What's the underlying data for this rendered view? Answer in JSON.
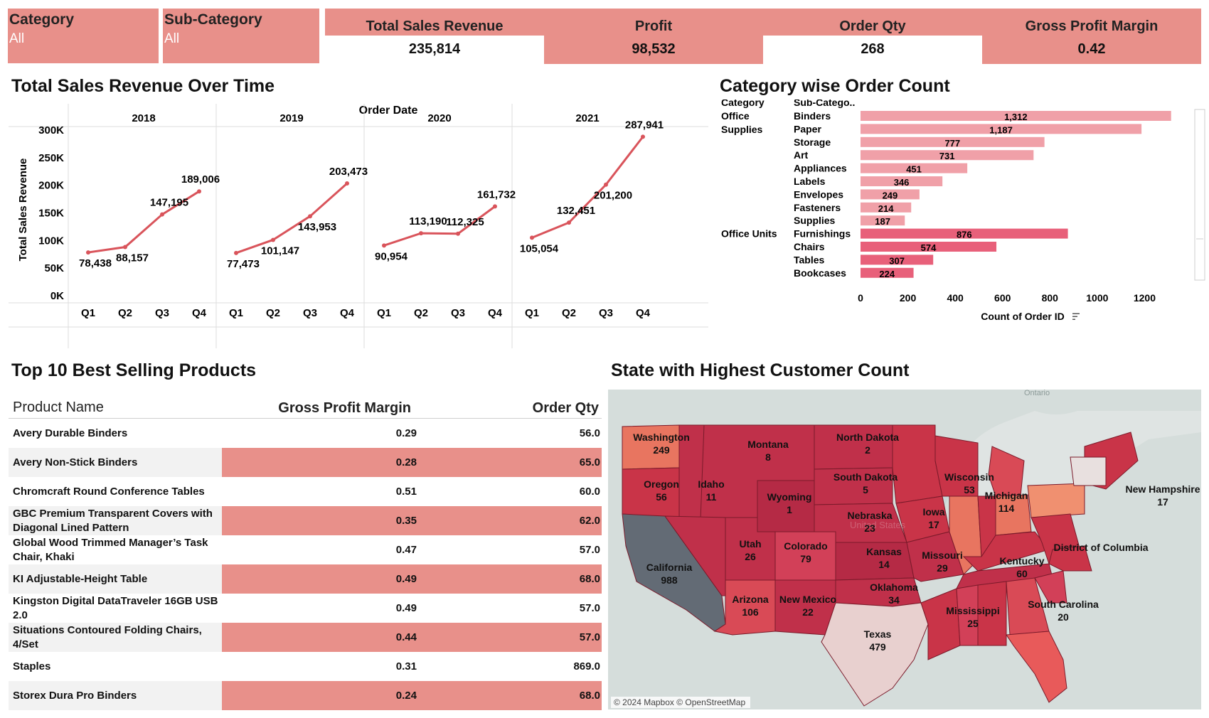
{
  "filters": {
    "category": {
      "label": "Category",
      "value": "All"
    },
    "sub_category": {
      "label": "Sub-Category",
      "value": "All"
    }
  },
  "kpis": [
    {
      "label": "Total Sales Revenue",
      "value": "235,814"
    },
    {
      "label": "Profit",
      "value": "98,532"
    },
    {
      "label": "Order Qty",
      "value": "268"
    },
    {
      "label": "Gross Profit Margin",
      "value": "0.42"
    }
  ],
  "sales_chart": {
    "title": "Total Sales Revenue Over Time",
    "header": "Order Date",
    "ylabel": "Total Sales Revenue",
    "y_ticks": [
      "0K",
      "50K",
      "100K",
      "150K",
      "200K",
      "250K",
      "300K"
    ],
    "quarters": [
      "Q1",
      "Q2",
      "Q3",
      "Q4"
    ],
    "line_color": "#d9545b"
  },
  "category_chart": {
    "title": "Category wise Order Count",
    "col_category": "Category",
    "col_subcategory": "Sub-Catego..",
    "xlabel": "Count of Order ID",
    "x_ticks": [
      "0",
      "200",
      "400",
      "600",
      "800",
      "1000",
      "1200"
    ],
    "groups": [
      "Office Supplies",
      "Office Units"
    ]
  },
  "products_table": {
    "title": "Top 10 Best Selling Products",
    "headers": {
      "name": "Product Name",
      "gpm": "Gross Profit Margin",
      "qty": "Order Qty"
    },
    "rows": [
      {
        "name": "Avery Durable Binders",
        "gpm": "0.29",
        "qty": "56.0"
      },
      {
        "name": "Avery Non-Stick Binders",
        "gpm": "0.28",
        "qty": "65.0"
      },
      {
        "name": "Chromcraft Round Conference Tables",
        "gpm": "0.51",
        "qty": "60.0"
      },
      {
        "name": "GBC Premium Transparent Covers with Diagonal Lined Pattern",
        "gpm": "0.35",
        "qty": "62.0"
      },
      {
        "name": "Global Wood Trimmed Manager’s Task Chair, Khaki",
        "gpm": "0.47",
        "qty": "57.0"
      },
      {
        "name": "KI Adjustable-Height Table",
        "gpm": "0.49",
        "qty": "68.0"
      },
      {
        "name": "Kingston Digital DataTraveler 16GB USB 2.0",
        "gpm": "0.49",
        "qty": "57.0"
      },
      {
        "name": "Situations Contoured Folding Chairs, 4/Set",
        "gpm": "0.44",
        "qty": "57.0"
      },
      {
        "name": "Staples",
        "gpm": "0.31",
        "qty": "869.0"
      },
      {
        "name": "Storex Dura Pro Binders",
        "gpm": "0.24",
        "qty": "68.0"
      }
    ]
  },
  "map": {
    "title": "State with Highest Customer Count",
    "attribution": "© 2024 Mapbox © OpenStreetMap",
    "background_labels": [
      "Ontario",
      "United States"
    ],
    "states": [
      {
        "name": "Washington",
        "count": "249"
      },
      {
        "name": "Montana",
        "count": "8"
      },
      {
        "name": "North Dakota",
        "count": "2"
      },
      {
        "name": "Oregon",
        "count": "56"
      },
      {
        "name": "Idaho",
        "count": "11"
      },
      {
        "name": "Wyoming",
        "count": "1"
      },
      {
        "name": "South Dakota",
        "count": "5"
      },
      {
        "name": "Wisconsin",
        "count": "53"
      },
      {
        "name": "Michigan",
        "count": "114"
      },
      {
        "name": "New Hampshire",
        "count": "17"
      },
      {
        "name": "Iowa",
        "count": "17"
      },
      {
        "name": "Nebraska",
        "count": "23"
      },
      {
        "name": "Utah",
        "count": "26"
      },
      {
        "name": "Colorado",
        "count": "79"
      },
      {
        "name": "Kansas",
        "count": "14"
      },
      {
        "name": "Missouri",
        "count": "29"
      },
      {
        "name": "District of Columbia",
        "count": ""
      },
      {
        "name": "Kentucky",
        "count": "60"
      },
      {
        "name": "California",
        "count": "988"
      },
      {
        "name": "Arizona",
        "count": "106"
      },
      {
        "name": "New Mexico",
        "count": "22"
      },
      {
        "name": "Oklahoma",
        "count": "34"
      },
      {
        "name": "Mississippi",
        "count": "25"
      },
      {
        "name": "South Carolina",
        "count": "20"
      },
      {
        "name": "Texas",
        "count": "479"
      }
    ]
  },
  "chart_data": [
    {
      "type": "line",
      "title": "Total Sales Revenue Over Time",
      "ylabel": "Total Sales Revenue",
      "ylim": [
        0,
        300000
      ],
      "panels": [
        {
          "year": "2018",
          "labels": [
            "78,438",
            "88,157",
            "147,195",
            "189,006"
          ],
          "values": [
            78438,
            88157,
            147195,
            189006
          ]
        },
        {
          "year": "2019",
          "labels": [
            "77,473",
            "101,147",
            "143,953",
            "203,473"
          ],
          "values": [
            77473,
            101147,
            143953,
            203473
          ]
        },
        {
          "year": "2020",
          "labels": [
            "90,954",
            "113,190",
            "112,325",
            "161,732"
          ],
          "values": [
            90954,
            113190,
            112325,
            161732
          ]
        },
        {
          "year": "2021",
          "labels": [
            "105,054",
            "132,451",
            "201,200",
            "287,941"
          ],
          "values": [
            105054,
            132451,
            201200,
            287941
          ]
        }
      ]
    },
    {
      "type": "bar",
      "title": "Category wise Order Count",
      "xlabel": "Count of Order ID",
      "xlim": [
        0,
        1400
      ],
      "bars": [
        {
          "group": "Office Supplies",
          "name": "Binders",
          "value": 1312,
          "label": "1,312"
        },
        {
          "group": "Office Supplies",
          "name": "Paper",
          "value": 1187,
          "label": "1,187"
        },
        {
          "group": "Office Supplies",
          "name": "Storage",
          "value": 777,
          "label": "777"
        },
        {
          "group": "Office Supplies",
          "name": "Art",
          "value": 731,
          "label": "731"
        },
        {
          "group": "Office Supplies",
          "name": "Appliances",
          "value": 451,
          "label": "451"
        },
        {
          "group": "Office Supplies",
          "name": "Labels",
          "value": 346,
          "label": "346"
        },
        {
          "group": "Office Supplies",
          "name": "Envelopes",
          "value": 249,
          "label": "249"
        },
        {
          "group": "Office Supplies",
          "name": "Fasteners",
          "value": 214,
          "label": "214"
        },
        {
          "group": "Office Supplies",
          "name": "Supplies",
          "value": 187,
          "label": "187"
        },
        {
          "group": "Office Units",
          "name": "Furnishings",
          "value": 876,
          "label": "876"
        },
        {
          "group": "Office Units",
          "name": "Chairs",
          "value": 574,
          "label": "574"
        },
        {
          "group": "Office Units",
          "name": "Tables",
          "value": 307,
          "label": "307"
        },
        {
          "group": "Office Units",
          "name": "Bookcases",
          "value": 224,
          "label": "224"
        }
      ],
      "colors": {
        "Office Supplies": "#f0a0a8",
        "Office Units": "#e8607a"
      }
    }
  ]
}
